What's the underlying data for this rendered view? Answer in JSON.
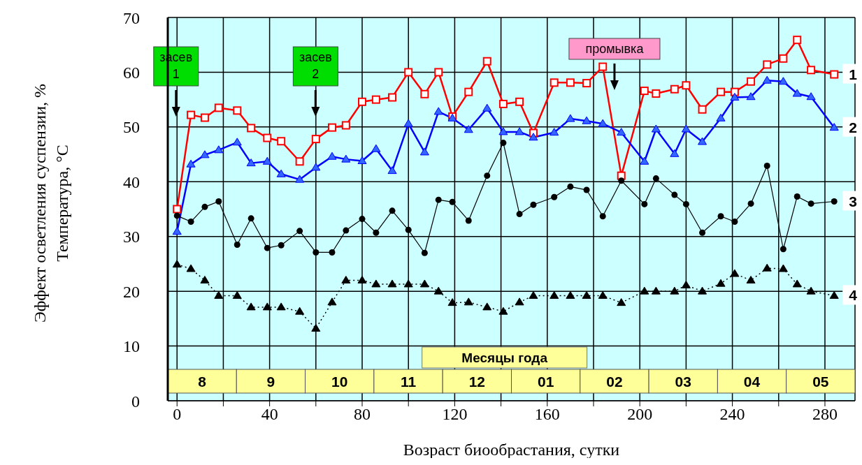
{
  "chart_data": {
    "type": "line",
    "xlabel": "Возраст биообрастания, сутки",
    "ylabel": "Эффект осветления суспензии, %\nТемпература, °C",
    "x": [
      0,
      6,
      12,
      18,
      26,
      32,
      39,
      45,
      53,
      60,
      67,
      73,
      80,
      86,
      93,
      100,
      107,
      113,
      119,
      126,
      134,
      141,
      148,
      154,
      163,
      170,
      177,
      184,
      192,
      202,
      207,
      215,
      220,
      227,
      235,
      241,
      248,
      255,
      262,
      268,
      274,
      284
    ],
    "series": [
      {
        "name": "1",
        "color": "#ff0000",
        "marker": "square",
        "line_style": "solid",
        "values": [
          35,
          52.2,
          51.7,
          53.5,
          53,
          49.8,
          48,
          47.4,
          43.7,
          47.8,
          49.9,
          50.3,
          54.6,
          55,
          55.4,
          60,
          56,
          60,
          51.9,
          56.4,
          62,
          54.2,
          54.6,
          48.9,
          58.1,
          58.1,
          58,
          61,
          41.1,
          56.6,
          56.1,
          56.9,
          57.6,
          53.2,
          56.4,
          56.4,
          58.3,
          61.4,
          62.5,
          65.9,
          60.4,
          59.6
        ]
      },
      {
        "name": "2",
        "color": "#0000ff",
        "marker": "triangle",
        "line_style": "solid",
        "values": [
          30.9,
          43.2,
          44.9,
          45.8,
          47.2,
          43.4,
          43.7,
          41.4,
          40.4,
          42.6,
          44.6,
          44.1,
          43.8,
          46,
          42,
          50.6,
          45.4,
          52.8,
          51.6,
          49.5,
          53.4,
          49.1,
          49.1,
          48.1,
          49,
          51.5,
          51.1,
          50.6,
          49,
          43.7,
          49.6,
          45.1,
          49.6,
          47.3,
          51.6,
          55.4,
          55.5,
          58.5,
          58.3,
          56.1,
          55.5,
          49.9
        ]
      },
      {
        "name": "3",
        "color": "#000000",
        "marker": "circle",
        "line_style": "solid",
        "values": [
          33.8,
          32.7,
          35.4,
          36.4,
          28.5,
          33.3,
          27.9,
          28.4,
          31,
          27.1,
          27.1,
          31.1,
          33.2,
          30.7,
          34.7,
          31.2,
          27,
          36.7,
          36.3,
          32.9,
          41.1,
          47.1,
          34.1,
          35.8,
          37.2,
          39.1,
          38.5,
          33.7,
          40.2,
          35.9,
          40.6,
          37.6,
          35.9,
          30.7,
          33.7,
          32.7,
          36,
          42.9,
          27.7,
          37.3,
          36,
          36.4
        ]
      },
      {
        "name": "4",
        "color": "#000000",
        "marker": "triangle",
        "line_style": "dotted",
        "values": [
          24.9,
          24.1,
          22,
          19.2,
          19.2,
          17.1,
          17.1,
          17.1,
          16.3,
          13.2,
          18,
          22,
          22,
          21.3,
          21.3,
          21.3,
          21.3,
          20,
          17.9,
          18,
          17.1,
          16.3,
          18,
          19.2,
          19.2,
          19.2,
          19.2,
          19.2,
          17.9,
          20,
          20,
          20,
          21.1,
          20,
          21.4,
          23.2,
          22,
          24.2,
          24.1,
          21.3,
          20,
          19.2
        ]
      }
    ],
    "xlim": [
      -4,
      293
    ],
    "xticks": [
      0,
      {
        "value": 20,
        "label": null
      },
      40,
      {
        "value": 60,
        "label": null
      },
      80,
      {
        "value": 100,
        "label": null
      },
      120,
      {
        "value": 140,
        "label": null
      },
      160,
      {
        "value": 180,
        "label": null
      },
      200,
      {
        "value": 220,
        "label": null
      },
      240,
      {
        "value": 260,
        "label": null
      },
      280
    ],
    "ylim": [
      0,
      70
    ],
    "yticks": [
      0,
      10,
      20,
      30,
      40,
      50,
      60,
      70
    ],
    "grid": true,
    "legend": false,
    "annotations": [
      "засев 1",
      "засев 2",
      "промывка",
      "Месяцы года",
      "8",
      "9",
      "10",
      "11",
      "12",
      "01",
      "02",
      "03",
      "04",
      "05"
    ]
  }
}
